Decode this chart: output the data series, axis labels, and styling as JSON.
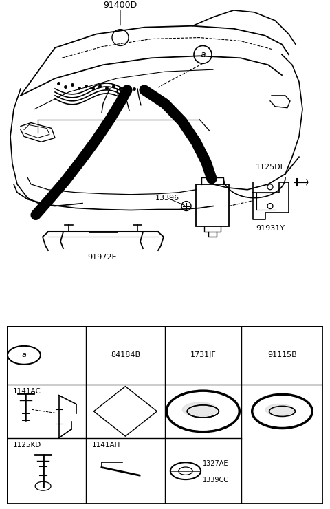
{
  "bg_color": "#ffffff",
  "fig_width": 4.8,
  "fig_height": 7.4,
  "dpi": 100,
  "label_91400D": "91400D",
  "label_13396": "13396",
  "label_91972E": "91972E",
  "label_1125DL": "1125DL",
  "label_91931Y": "91931Y",
  "label_a": "a",
  "table_header": [
    "a",
    "84184B",
    "1731JF",
    "91115B"
  ],
  "table_row1_labels": [
    "1141AC",
    "",
    "",
    ""
  ],
  "table_row2_labels": [
    "1125KD",
    "1141AH",
    "",
    ""
  ],
  "table_row2_extra": "1327AE\n1339CC",
  "cols": [
    0.0,
    0.25,
    0.5,
    0.74,
    1.0
  ],
  "rows": [
    1.0,
    0.67,
    0.37,
    0.0
  ]
}
